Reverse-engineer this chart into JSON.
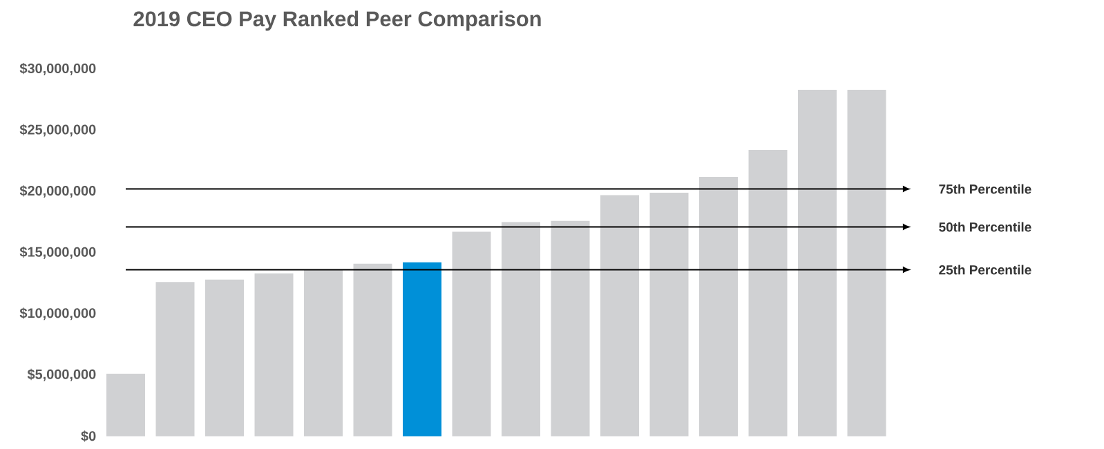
{
  "chart_data": {
    "type": "bar",
    "title": "2019 CEO Pay Ranked Peer Comparison",
    "categories": [
      null,
      null,
      null,
      null,
      null,
      null,
      null,
      null,
      null,
      null,
      null,
      null,
      null,
      null,
      null,
      null
    ],
    "values": [
      5100000,
      12600000,
      12800000,
      13300000,
      13600000,
      14100000,
      14200000,
      16700000,
      17500000,
      17600000,
      19700000,
      19900000,
      21200000,
      23400000,
      28300000,
      28300000
    ],
    "colors": [
      "#d0d1d3",
      "#d0d1d3",
      "#d0d1d3",
      "#d0d1d3",
      "#d0d1d3",
      "#d0d1d3",
      "#0090d8",
      "#d0d1d3",
      "#d0d1d3",
      "#d0d1d3",
      "#d0d1d3",
      "#d0d1d3",
      "#d0d1d3",
      "#d0d1d3",
      "#d0d1d3",
      "#d0d1d3"
    ],
    "ylim": [
      0,
      30000000
    ],
    "yticks": [
      {
        "value": 0,
        "label": "$0"
      },
      {
        "value": 5000000,
        "label": "$5,000,000"
      },
      {
        "value": 10000000,
        "label": "$10,000,000"
      },
      {
        "value": 15000000,
        "label": "$15,000,000"
      },
      {
        "value": 20000000,
        "label": "$20,000,000"
      },
      {
        "value": 25000000,
        "label": "$25,000,000"
      },
      {
        "value": 30000000,
        "label": "$30,000,000"
      }
    ],
    "tick_labels": "y",
    "ref_lines": [
      {
        "axis": "y",
        "value": 20200000,
        "label": "75th Percentile"
      },
      {
        "axis": "y",
        "value": 17100000,
        "label": "50th  Percentile"
      },
      {
        "axis": "y",
        "value": 13600000,
        "label": "25th Percentile"
      }
    ]
  }
}
